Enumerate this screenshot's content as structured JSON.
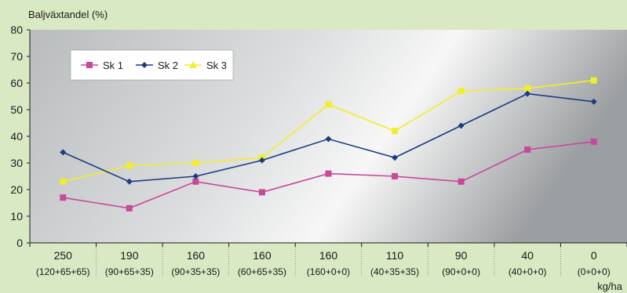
{
  "chart_data": {
    "type": "line",
    "ylabel": "Baljväxtandel (%)",
    "xlabel": "kg/ha",
    "ylim": [
      0,
      80
    ],
    "yticks": [
      0,
      10,
      20,
      30,
      40,
      50,
      60,
      70,
      80
    ],
    "categories": [
      "250",
      "190",
      "160",
      "160",
      "160",
      "110",
      "90",
      "40",
      "0"
    ],
    "subcategories": [
      "(120+65+65)",
      "(90+65+35)",
      "(90+35+35)",
      "(60+65+35)",
      "(160+0+0)",
      "(40+35+35)",
      "(90+0+0)",
      "(40+0+0)",
      "(0+0+0)"
    ],
    "legend_position": "top-left",
    "series": [
      {
        "name": "Sk 1",
        "color": "#c8489a",
        "marker": "square",
        "values": [
          17,
          13,
          23,
          19,
          26,
          25,
          23,
          35,
          38
        ]
      },
      {
        "name": "Sk 2",
        "color": "#1b3d80",
        "marker": "diamond",
        "values": [
          34,
          23,
          25,
          31,
          39,
          32,
          44,
          56,
          53
        ]
      },
      {
        "name": "Sk 3",
        "color": "#f2ee2a",
        "marker": "triangle",
        "values": [
          23,
          29,
          30,
          32,
          52,
          42,
          57,
          58,
          61
        ]
      }
    ]
  }
}
